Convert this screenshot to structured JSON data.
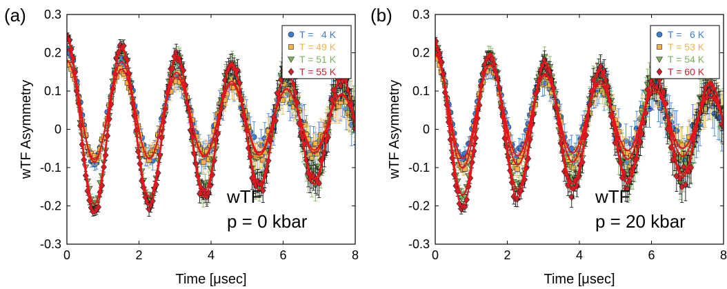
{
  "chart_data": [
    {
      "type": "scatter",
      "panel_label": "(a)",
      "xlabel": "Time [μsec]",
      "ylabel": "wTF Asymmetry",
      "xlim": [
        0,
        8
      ],
      "ylim": [
        -0.3,
        0.3
      ],
      "x_ticks": [
        "0",
        "2",
        "4",
        "6",
        "8"
      ],
      "y_ticks": [
        "-0.3",
        "-0.2",
        "-0.1",
        "0",
        "0.1",
        "0.2",
        "0.3"
      ],
      "annotation_lines": [
        "wTF",
        "p = 0 kbar"
      ],
      "legend_position": "top-right",
      "box": true,
      "grid": false,
      "model": {
        "frequency_MHz": 0.655,
        "fit_color": "#e8141b"
      },
      "series": [
        {
          "name": "T =   4 K",
          "color": "#3b7ed6",
          "marker": "circle",
          "amplitude": 0.15,
          "offset": 0.06,
          "relax": 0.05,
          "extra_decay": 0.05,
          "error": 0.012
        },
        {
          "name": "T = 49 K",
          "color": "#f4b24a",
          "marker": "square",
          "amplitude": 0.13,
          "offset": 0.05,
          "relax": 0.05,
          "extra_decay": 0.02,
          "error": 0.01
        },
        {
          "name": "T = 51 K",
          "color": "#7ab25a",
          "marker": "triangle-down",
          "amplitude": 0.22,
          "offset": 0.015,
          "relax": 0.07,
          "extra_decay": 0.0,
          "error": 0.01
        },
        {
          "name": "T = 55 K",
          "color": "#d0202a",
          "marker": "diamond",
          "amplitude": 0.235,
          "offset": 0.005,
          "relax": 0.07,
          "extra_decay": 0.0,
          "error": 0.009
        }
      ]
    },
    {
      "type": "scatter",
      "panel_label": "(b)",
      "xlabel": "Time [μsec]",
      "ylabel": "wTF Asymmetry",
      "xlim": [
        0,
        8
      ],
      "ylim": [
        -0.3,
        0.3
      ],
      "x_ticks": [
        "0",
        "2",
        "4",
        "6",
        "8"
      ],
      "y_ticks": [
        "-0.3",
        "-0.2",
        "-0.1",
        "0",
        "0.1",
        "0.2",
        "0.3"
      ],
      "annotation_lines": [
        "wTF",
        "p = 20 kbar"
      ],
      "legend_position": "top-right",
      "box": true,
      "grid": false,
      "model": {
        "frequency_MHz": 0.655,
        "fit_color": "#e8141b"
      },
      "series": [
        {
          "name": "T =   6 K",
          "color": "#3b7ed6",
          "marker": "circle",
          "amplitude": 0.14,
          "offset": 0.06,
          "relax": 0.05,
          "extra_decay": 0.05,
          "error": 0.013
        },
        {
          "name": "T = 53 K",
          "color": "#f4b24a",
          "marker": "square",
          "amplitude": 0.15,
          "offset": 0.045,
          "relax": 0.05,
          "extra_decay": 0.03,
          "error": 0.011
        },
        {
          "name": "T = 54 K",
          "color": "#7ab25a",
          "marker": "triangle-down",
          "amplitude": 0.2,
          "offset": 0.02,
          "relax": 0.07,
          "extra_decay": 0.0,
          "error": 0.011
        },
        {
          "name": "T = 60 K",
          "color": "#d0202a",
          "marker": "diamond",
          "amplitude": 0.22,
          "offset": 0.005,
          "relax": 0.08,
          "extra_decay": 0.0,
          "error": 0.01
        }
      ]
    }
  ]
}
